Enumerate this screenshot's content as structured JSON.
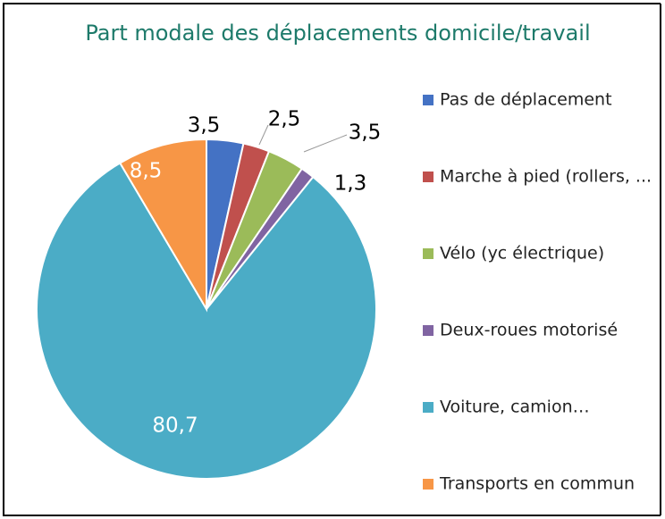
{
  "chart_data": {
    "type": "pie",
    "title": "Part modale des déplacements domicile/travail",
    "categories": [
      "Pas de déplacement",
      "Marche à pied (rollers, ...",
      "Vélo (yc électrique)",
      "Deux-roues motorisé",
      "Voiture, camion…",
      "Transports en commun"
    ],
    "values": [
      3.5,
      2.5,
      3.5,
      1.3,
      80.7,
      8.5
    ],
    "value_labels": [
      "3,5",
      "2,5",
      "3,5",
      "1,3",
      "80,7",
      "8,5"
    ],
    "colors": [
      "#4472c4",
      "#c0504d",
      "#9bbb59",
      "#8064a2",
      "#4bacc6",
      "#f79646"
    ],
    "legend": "right"
  }
}
